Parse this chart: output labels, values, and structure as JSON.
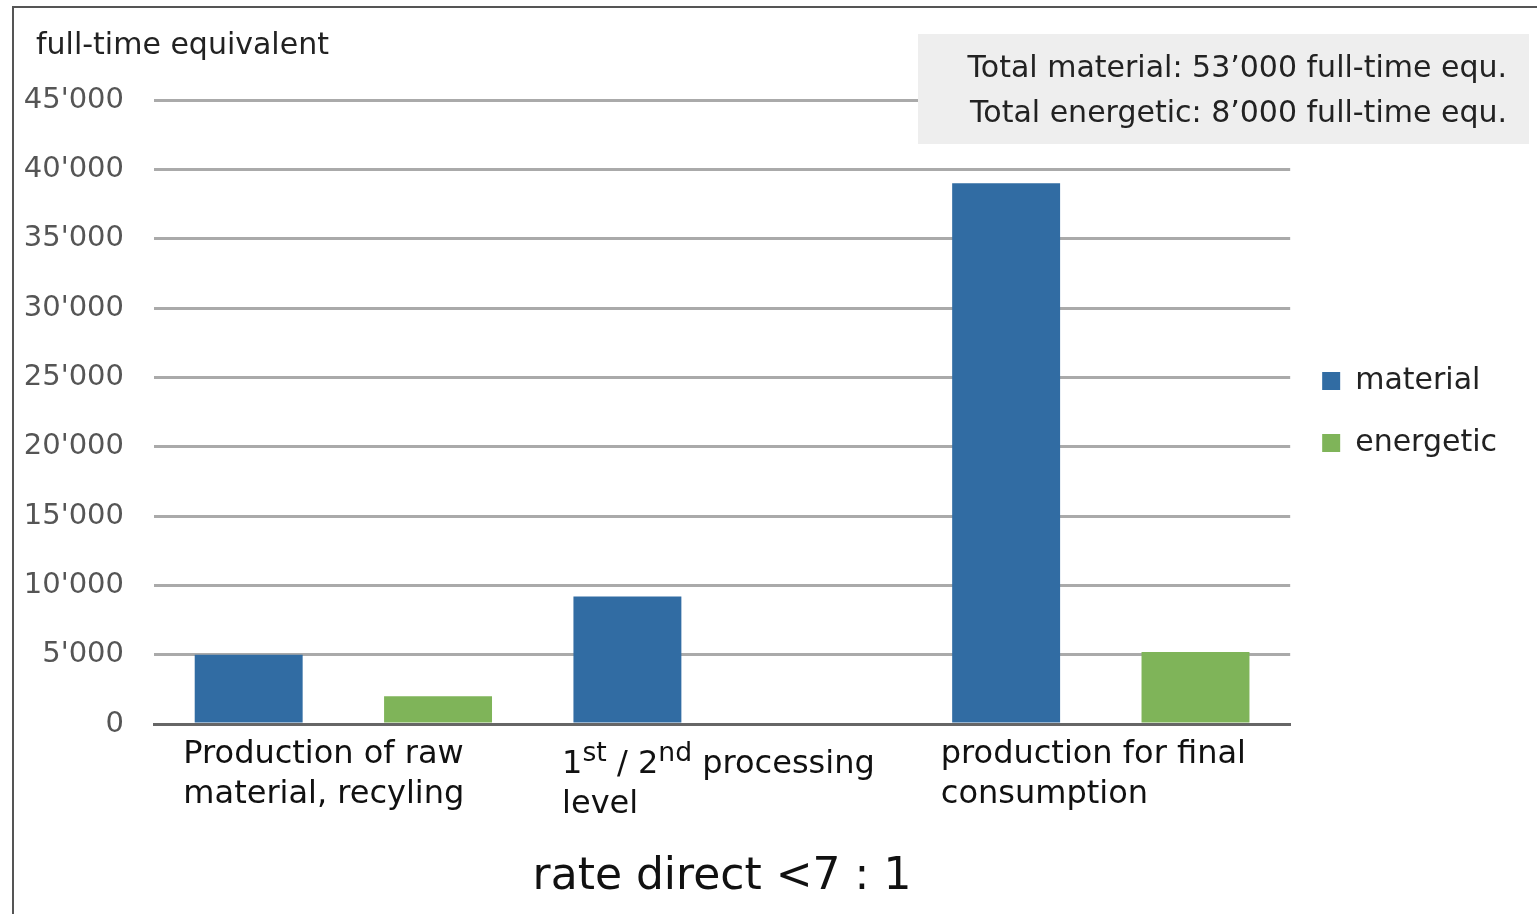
{
  "chart_data": {
    "type": "bar",
    "ylabel": "full-time equivalent",
    "categories": [
      "Production of raw material, recyling",
      "1$^{st}$ / 2$^{nd}$ processing level",
      "production for final consumption"
    ],
    "series": [
      {
        "name": "material",
        "color": "#316ca3",
        "values": [
          5000,
          9200,
          39000
        ]
      },
      {
        "name": "energetic",
        "color": "#7fb459",
        "values": [
          2000,
          null,
          5200
        ]
      }
    ],
    "ylim": [
      0,
      45000
    ],
    "yticks": [
      {
        "value": 0,
        "label": "0"
      },
      {
        "value": 5000,
        "label": "5'000"
      },
      {
        "value": 10000,
        "label": "10'000"
      },
      {
        "value": 15000,
        "label": "15'000"
      },
      {
        "value": 20000,
        "label": "20'000"
      },
      {
        "value": 25000,
        "label": "25'000"
      },
      {
        "value": 30000,
        "label": "30'000"
      },
      {
        "value": 35000,
        "label": "35'000"
      },
      {
        "value": 40000,
        "label": "40'000"
      },
      {
        "value": 45000,
        "label": "45'000"
      }
    ],
    "grid": "y",
    "legend": "right",
    "annotations": [
      "Total material:  53’000 full-time equ.",
      "Total energetic:   8’000 full-time equ.",
      "rate direct <7 : 1"
    ]
  }
}
